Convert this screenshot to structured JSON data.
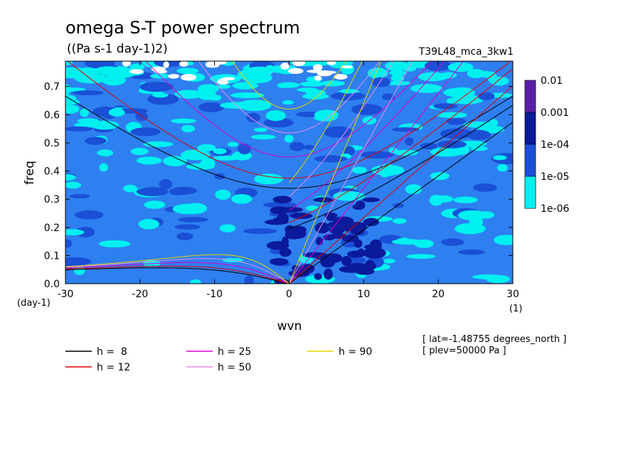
{
  "chart_data": {
    "type": "heatmap",
    "title": "omega S-T power spectrum",
    "subtitle": "((Pa s-1 day-1)2)",
    "run_label": "T39L48_mca_3kw1",
    "xlabel": "wvn",
    "ylabel": "freq",
    "x_unit": "(1)",
    "y_unit": "(day-1)",
    "xlim": [
      -30,
      30
    ],
    "ylim": [
      0,
      0.79
    ],
    "xticks": [
      -30,
      -20,
      -10,
      0,
      10,
      20,
      30
    ],
    "yticks": [
      0.0,
      0.1,
      0.2,
      0.3,
      0.4,
      0.5,
      0.6,
      0.7
    ],
    "colorbar": {
      "levels": [
        "0.01",
        "0.001",
        "1e-04",
        "1e-05",
        "1e-06"
      ],
      "colors": [
        "#5a1fa8",
        "#0a1a9a",
        "#1a4fd6",
        "#2e7ff0",
        "#00f0f0"
      ]
    },
    "legend": [
      {
        "label": "h =  8",
        "color": "#000000",
        "h": 8
      },
      {
        "label": "h = 12",
        "color": "#e00000",
        "h": 12
      },
      {
        "label": "h = 25",
        "color": "#e000c8",
        "h": 25
      },
      {
        "label": "h = 50",
        "color": "#e88ce8",
        "h": 50
      },
      {
        "label": "h = 90",
        "color": "#e6d400",
        "h": 90
      }
    ],
    "annotations": [
      "[ lat=-1.48755 degrees_north ]",
      "[ plev=50000 Pa ]"
    ]
  }
}
